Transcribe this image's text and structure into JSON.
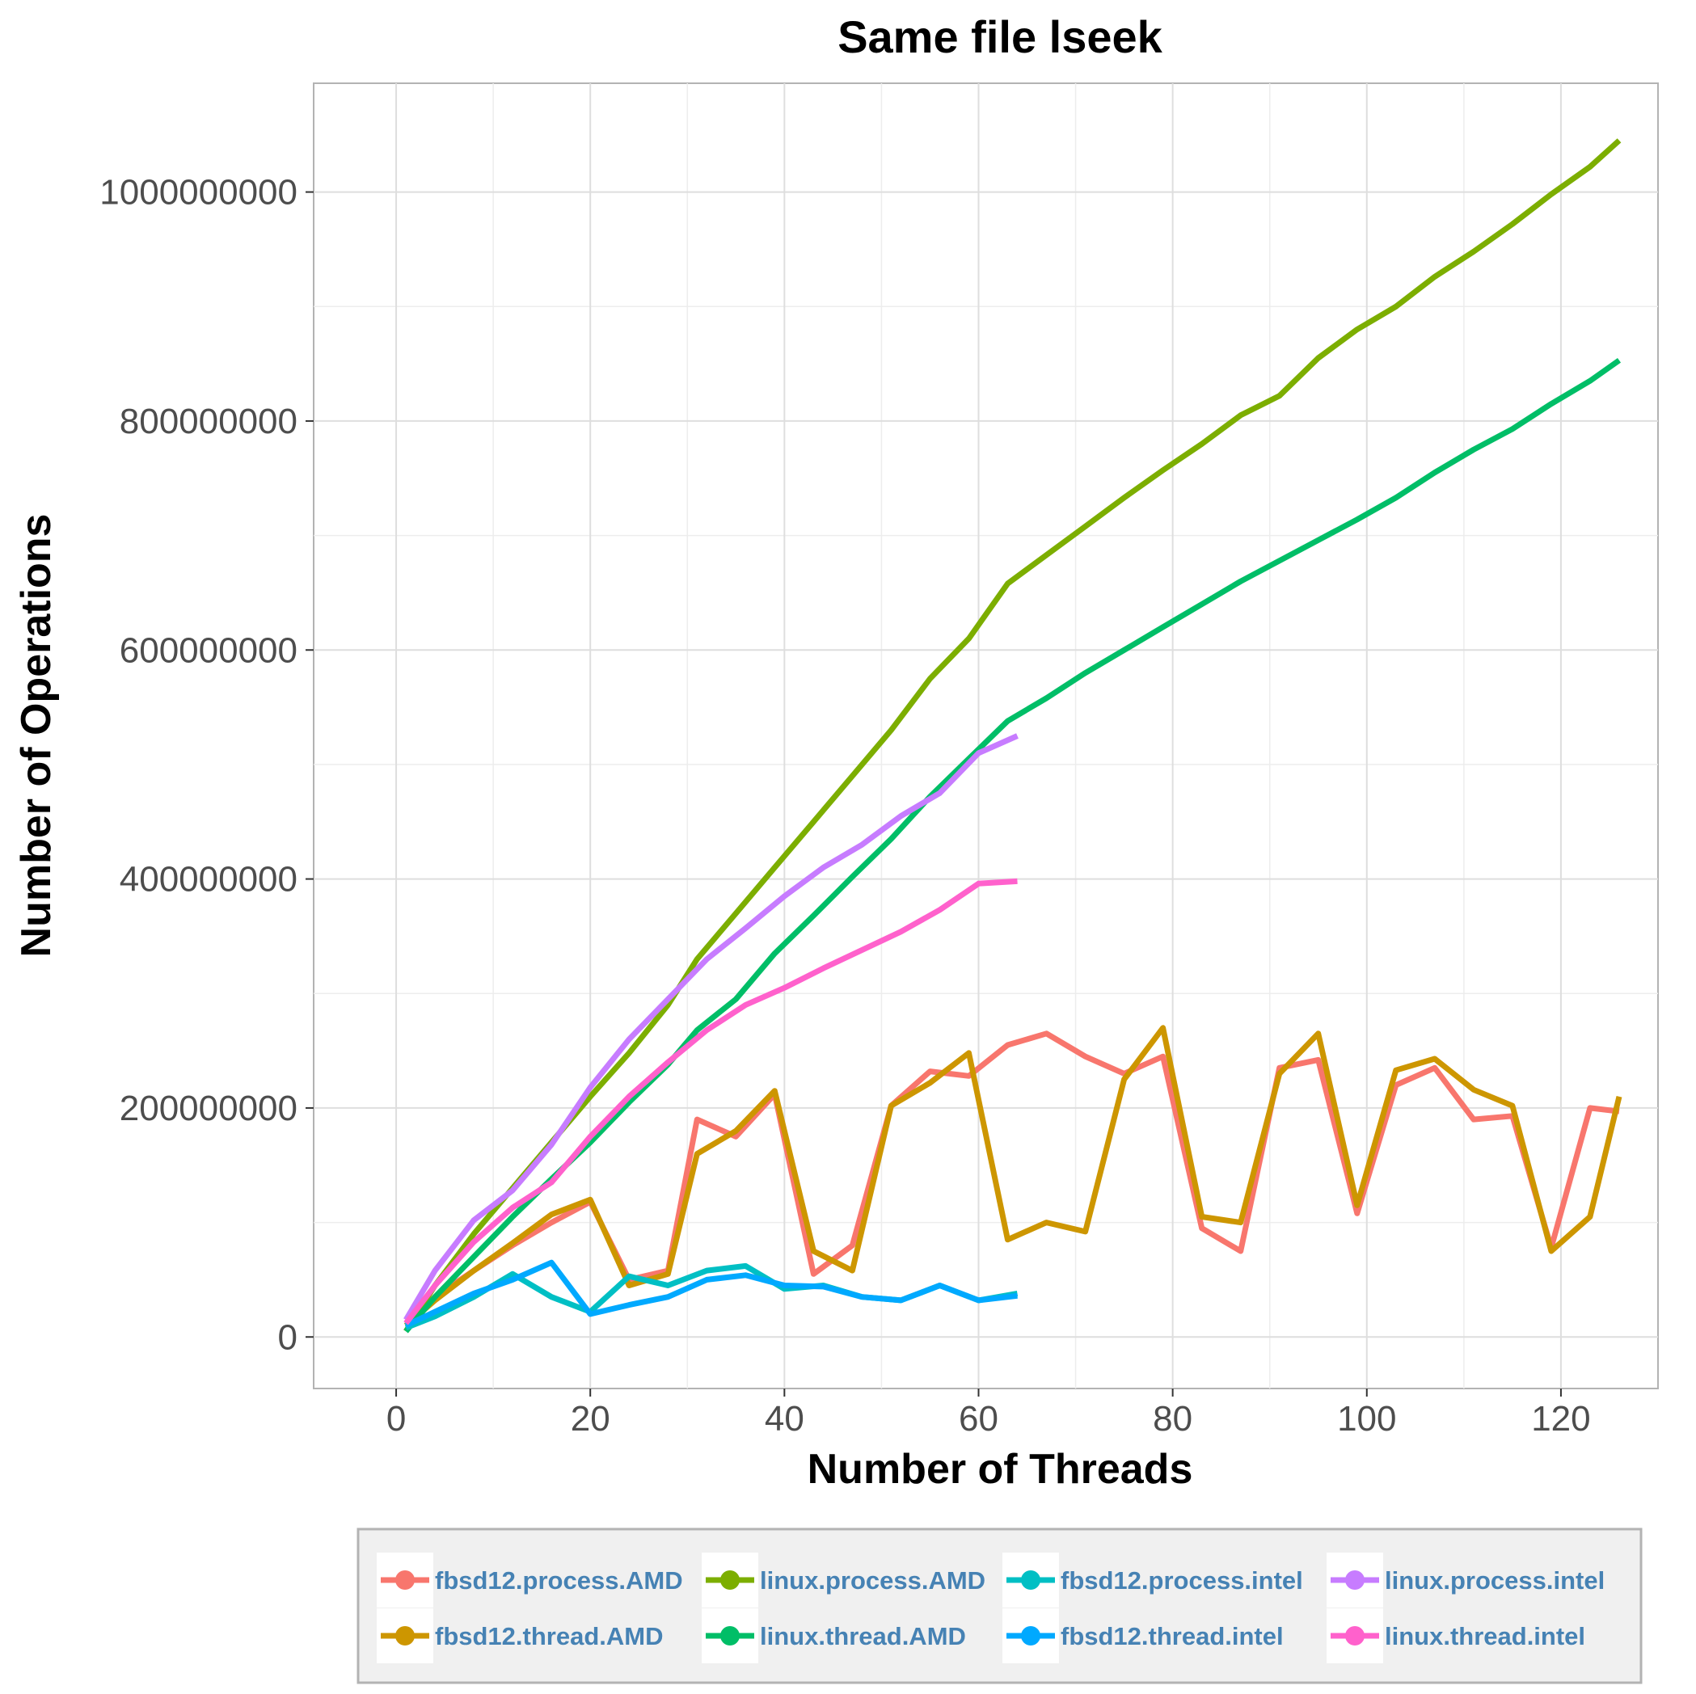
{
  "chart_data": {
    "type": "line",
    "title": "Same file lseek",
    "xlabel": "Number of Threads",
    "ylabel": "Number of Operations",
    "xlim": [
      -8.5,
      130
    ],
    "ylim": [
      -45000000,
      1095000000
    ],
    "x_ticks": [
      0,
      20,
      40,
      60,
      80,
      100,
      120
    ],
    "x_tick_labels": [
      "0",
      "20",
      "40",
      "60",
      "80",
      "100",
      "120"
    ],
    "y_ticks": [
      0,
      200000000,
      400000000,
      600000000,
      800000000,
      1000000000
    ],
    "y_tick_labels": [
      "0",
      "200000000",
      "400000000",
      "600000000",
      "800000000",
      "1000000000"
    ],
    "grid": true,
    "legend_position": "bottom",
    "series": [
      {
        "name": "fbsd12.process.AMD",
        "color": "#F8766D",
        "x": [
          1,
          4,
          8,
          12,
          16,
          20,
          24,
          28,
          31,
          35,
          39,
          43,
          47,
          51,
          55,
          59,
          63,
          67,
          71,
          75,
          79,
          83,
          87,
          91,
          95,
          99,
          103,
          107,
          111,
          115,
          119,
          123,
          126
        ],
        "y": [
          12000000,
          35000000,
          58000000,
          80000000,
          100000000,
          118000000,
          50000000,
          58000000,
          190000000,
          175000000,
          212000000,
          55000000,
          80000000,
          202000000,
          232000000,
          228000000,
          255000000,
          265000000,
          245000000,
          230000000,
          245000000,
          95000000,
          75000000,
          235000000,
          242000000,
          108000000,
          220000000,
          235000000,
          190000000,
          193000000,
          78000000,
          200000000,
          197000000
        ]
      },
      {
        "name": "fbsd12.thread.AMD",
        "color": "#CD9600",
        "x": [
          1,
          4,
          8,
          12,
          16,
          20,
          24,
          28,
          31,
          35,
          39,
          43,
          47,
          51,
          55,
          59,
          63,
          67,
          71,
          75,
          79,
          83,
          87,
          91,
          95,
          99,
          103,
          107,
          111,
          115,
          119,
          123,
          126
        ],
        "y": [
          10000000,
          32000000,
          58000000,
          82000000,
          107000000,
          120000000,
          45000000,
          55000000,
          160000000,
          180000000,
          215000000,
          75000000,
          58000000,
          202000000,
          222000000,
          248000000,
          85000000,
          100000000,
          92000000,
          225000000,
          270000000,
          105000000,
          100000000,
          230000000,
          265000000,
          115000000,
          233000000,
          243000000,
          216000000,
          202000000,
          75000000,
          105000000,
          210000000
        ]
      },
      {
        "name": "linux.process.AMD",
        "color": "#7CAE00",
        "x": [
          1,
          4,
          8,
          12,
          16,
          20,
          24,
          28,
          31,
          35,
          39,
          43,
          47,
          51,
          55,
          59,
          63,
          67,
          71,
          75,
          79,
          83,
          87,
          91,
          95,
          99,
          103,
          107,
          111,
          115,
          119,
          123,
          126
        ],
        "y": [
          5000000,
          45000000,
          90000000,
          130000000,
          170000000,
          210000000,
          248000000,
          290000000,
          330000000,
          370000000,
          410000000,
          450000000,
          490000000,
          530000000,
          575000000,
          610000000,
          658000000,
          683000000,
          708000000,
          733000000,
          757000000,
          780000000,
          805000000,
          822000000,
          855000000,
          880000000,
          900000000,
          926000000,
          948000000,
          972000000,
          998000000,
          1022000000,
          1045000000
        ]
      },
      {
        "name": "linux.thread.AMD",
        "color": "#00BE67",
        "x": [
          1,
          4,
          8,
          12,
          16,
          20,
          24,
          28,
          31,
          35,
          39,
          43,
          47,
          51,
          55,
          59,
          63,
          67,
          71,
          75,
          79,
          83,
          87,
          91,
          95,
          99,
          103,
          107,
          111,
          115,
          119,
          123,
          126
        ],
        "y": [
          5000000,
          35000000,
          70000000,
          105000000,
          138000000,
          170000000,
          205000000,
          238000000,
          268000000,
          295000000,
          335000000,
          368000000,
          402000000,
          435000000,
          472000000,
          505000000,
          538000000,
          558000000,
          580000000,
          600000000,
          620000000,
          640000000,
          660000000,
          678000000,
          696000000,
          714000000,
          733000000,
          755000000,
          775000000,
          793000000,
          815000000,
          835000000,
          853000000
        ]
      },
      {
        "name": "fbsd12.process.intel",
        "color": "#00BFC4",
        "x": [
          1,
          4,
          8,
          12,
          16,
          20,
          24,
          28,
          32,
          36,
          40,
          44,
          48,
          52,
          56,
          60,
          64
        ],
        "y": [
          8000000,
          18000000,
          35000000,
          55000000,
          35000000,
          22000000,
          53000000,
          45000000,
          58000000,
          62000000,
          42000000,
          45000000,
          35000000,
          32000000,
          45000000,
          32000000,
          38000000
        ]
      },
      {
        "name": "fbsd12.thread.intel",
        "color": "#00A9FF",
        "x": [
          1,
          4,
          8,
          12,
          16,
          20,
          24,
          28,
          32,
          36,
          40,
          44,
          48,
          52,
          56,
          60,
          64
        ],
        "y": [
          10000000,
          22000000,
          38000000,
          50000000,
          65000000,
          20000000,
          28000000,
          35000000,
          50000000,
          54000000,
          45000000,
          44000000,
          35000000,
          32000000,
          45000000,
          32000000,
          36000000
        ]
      },
      {
        "name": "linux.process.intel",
        "color": "#C77CFF",
        "x": [
          1,
          4,
          8,
          12,
          16,
          20,
          24,
          28,
          32,
          36,
          40,
          44,
          48,
          52,
          56,
          60,
          64
        ],
        "y": [
          15000000,
          58000000,
          102000000,
          128000000,
          168000000,
          218000000,
          260000000,
          295000000,
          330000000,
          357000000,
          385000000,
          410000000,
          430000000,
          455000000,
          475000000,
          510000000,
          525000000
        ]
      },
      {
        "name": "linux.thread.intel",
        "color": "#FF61CC",
        "x": [
          1,
          4,
          8,
          12,
          16,
          20,
          24,
          28,
          32,
          36,
          40,
          44,
          48,
          52,
          56,
          60,
          64
        ],
        "y": [
          12000000,
          45000000,
          83000000,
          113000000,
          135000000,
          175000000,
          210000000,
          240000000,
          268000000,
          290000000,
          305000000,
          322000000,
          338000000,
          354000000,
          373000000,
          396000000,
          398000000
        ]
      }
    ],
    "legend_order": [
      "fbsd12.process.AMD",
      "linux.process.AMD",
      "fbsd12.process.intel",
      "linux.process.intel",
      "fbsd12.thread.AMD",
      "linux.thread.AMD",
      "fbsd12.thread.intel",
      "linux.thread.intel"
    ]
  }
}
